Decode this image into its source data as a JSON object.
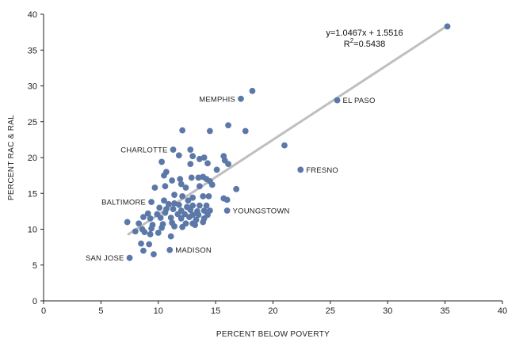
{
  "chart_data": {
    "type": "scatter",
    "xlabel": "PERCENT BELOW POVERTY",
    "ylabel": "PERCENT RAC & RAL",
    "xlim": [
      0,
      40
    ],
    "ylim": [
      0,
      40
    ],
    "x_ticks": [
      "0",
      "5",
      "10",
      "15",
      "20",
      "25",
      "30",
      "35",
      "40"
    ],
    "y_ticks": [
      "0",
      "5",
      "10",
      "15",
      "20",
      "25",
      "30",
      "35",
      "40"
    ],
    "grid": false,
    "point_color": "#5b78a8",
    "trend_color": "#bfbfbf",
    "trendline": {
      "slope": 1.0467,
      "intercept": 1.5516,
      "x_range": [
        7.4,
        35.2
      ],
      "equation": "y=1.0467x + 1.5516",
      "r_squared_prefix": "R",
      "r_squared_exp": "2",
      "r_squared_value": "=0.5438"
    },
    "labeled_points": [
      {
        "label": "MEMPHIS",
        "x": 17.2,
        "y": 28.2,
        "label_side": "left"
      },
      {
        "label": "EL PASO",
        "x": 25.6,
        "y": 28.0,
        "label_side": "right"
      },
      {
        "label": "CHARLOTTE",
        "x": 11.3,
        "y": 21.1,
        "label_side": "left"
      },
      {
        "label": "FRESNO",
        "x": 22.4,
        "y": 18.3,
        "label_side": "right"
      },
      {
        "label": "BALTIMORE",
        "x": 9.4,
        "y": 13.8,
        "label_side": "left"
      },
      {
        "label": "YOUNGSTOWN",
        "x": 16.0,
        "y": 12.6,
        "label_side": "right"
      },
      {
        "label": "MADISON",
        "x": 11.0,
        "y": 7.1,
        "label_side": "right"
      },
      {
        "label": "SAN JOSE",
        "x": 7.5,
        "y": 6.0,
        "label_side": "left"
      }
    ],
    "points": [
      [
        35.2,
        38.3
      ],
      [
        18.2,
        29.3
      ],
      [
        21.0,
        21.7
      ],
      [
        16.1,
        24.5
      ],
      [
        17.6,
        23.7
      ],
      [
        12.1,
        23.8
      ],
      [
        14.5,
        23.7
      ],
      [
        12.8,
        21.1
      ],
      [
        11.8,
        20.3
      ],
      [
        13.0,
        20.2
      ],
      [
        13.6,
        19.8
      ],
      [
        14.0,
        20.0
      ],
      [
        15.7,
        20.2
      ],
      [
        15.8,
        19.6
      ],
      [
        16.1,
        19.1
      ],
      [
        10.3,
        19.4
      ],
      [
        12.8,
        19.1
      ],
      [
        14.3,
        19.2
      ],
      [
        15.1,
        18.3
      ],
      [
        10.7,
        18.0
      ],
      [
        10.5,
        17.5
      ],
      [
        11.9,
        17.0
      ],
      [
        12.9,
        17.2
      ],
      [
        13.5,
        17.2
      ],
      [
        13.9,
        17.3
      ],
      [
        14.2,
        17.0
      ],
      [
        14.5,
        16.7
      ],
      [
        11.2,
        16.8
      ],
      [
        12.0,
        16.3
      ],
      [
        13.6,
        16.0
      ],
      [
        10.6,
        16.0
      ],
      [
        9.7,
        15.8
      ],
      [
        12.4,
        15.8
      ],
      [
        14.7,
        16.2
      ],
      [
        16.8,
        15.6
      ],
      [
        11.4,
        14.8
      ],
      [
        12.1,
        14.6
      ],
      [
        13.0,
        14.4
      ],
      [
        13.9,
        14.6
      ],
      [
        14.4,
        14.6
      ],
      [
        15.7,
        14.3
      ],
      [
        16.0,
        14.1
      ],
      [
        12.6,
        14.0
      ],
      [
        10.5,
        14.0
      ],
      [
        10.9,
        13.5
      ],
      [
        11.4,
        13.6
      ],
      [
        11.8,
        13.4
      ],
      [
        12.5,
        13.1
      ],
      [
        13.0,
        13.3
      ],
      [
        13.6,
        13.3
      ],
      [
        14.2,
        13.3
      ],
      [
        10.1,
        13.0
      ],
      [
        10.7,
        12.8
      ],
      [
        11.3,
        12.8
      ],
      [
        12.0,
        12.6
      ],
      [
        12.8,
        12.7
      ],
      [
        13.4,
        12.5
      ],
      [
        14.0,
        12.6
      ],
      [
        14.5,
        12.6
      ],
      [
        9.1,
        12.2
      ],
      [
        9.9,
        12.1
      ],
      [
        10.6,
        12.3
      ],
      [
        11.7,
        12.1
      ],
      [
        12.3,
        12.1
      ],
      [
        13.0,
        12.0
      ],
      [
        13.5,
        12.0
      ],
      [
        14.3,
        12.0
      ],
      [
        8.7,
        11.7
      ],
      [
        9.3,
        11.5
      ],
      [
        10.2,
        11.6
      ],
      [
        11.1,
        11.6
      ],
      [
        12.0,
        11.5
      ],
      [
        12.7,
        11.7
      ],
      [
        13.3,
        11.3
      ],
      [
        14.0,
        11.5
      ],
      [
        7.3,
        11.0
      ],
      [
        8.3,
        10.8
      ],
      [
        9.5,
        10.6
      ],
      [
        10.4,
        10.7
      ],
      [
        11.2,
        10.9
      ],
      [
        12.4,
        10.8
      ],
      [
        13.0,
        10.8
      ],
      [
        13.9,
        11.0
      ],
      [
        8.6,
        10.0
      ],
      [
        9.4,
        10.1
      ],
      [
        10.3,
        10.2
      ],
      [
        11.4,
        10.4
      ],
      [
        12.1,
        10.3
      ],
      [
        13.2,
        10.6
      ],
      [
        8.0,
        9.7
      ],
      [
        8.8,
        9.6
      ],
      [
        9.3,
        9.3
      ],
      [
        10.0,
        9.5
      ],
      [
        11.1,
        9.0
      ],
      [
        8.5,
        8.0
      ],
      [
        9.2,
        7.9
      ],
      [
        8.7,
        7.0
      ],
      [
        9.6,
        6.5
      ]
    ]
  }
}
